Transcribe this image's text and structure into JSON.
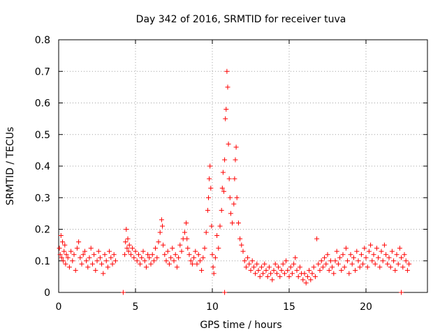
{
  "chart_data": {
    "type": "scatter",
    "title": "Day 342 of 2016, SRMTID for receiver tuva",
    "xlabel": "GPS time / hours",
    "ylabel": "SRMTID / TECUs",
    "xlim": [
      0,
      24
    ],
    "ylim": [
      0,
      0.8
    ],
    "xticks": [
      0,
      5,
      10,
      15,
      20
    ],
    "yticks": [
      0,
      0.1,
      0.2,
      0.3,
      0.4,
      0.5,
      0.6,
      0.7,
      0.8
    ],
    "xtick_labels": [
      "0",
      "5",
      "10",
      "15",
      "20"
    ],
    "ytick_labels": [
      "0",
      "0.1",
      "0.2",
      "0.3",
      "0.4",
      "0.5",
      "0.6",
      "0.7",
      "0.8"
    ],
    "grid": true,
    "marker": "+",
    "color": "#ff0000",
    "series": [
      {
        "name": "SRMTID",
        "points": [
          [
            0.05,
            0.14
          ],
          [
            0.1,
            0.12
          ],
          [
            0.15,
            0.18
          ],
          [
            0.2,
            0.11
          ],
          [
            0.25,
            0.16
          ],
          [
            0.3,
            0.1
          ],
          [
            0.35,
            0.13
          ],
          [
            0.4,
            0.15
          ],
          [
            0.45,
            0.09
          ],
          [
            0.5,
            0.12
          ],
          [
            0.6,
            0.11
          ],
          [
            0.7,
            0.08
          ],
          [
            0.8,
            0.13
          ],
          [
            0.9,
            0.1
          ],
          [
            1.0,
            0.12
          ],
          [
            1.1,
            0.07
          ],
          [
            1.2,
            0.14
          ],
          [
            1.3,
            0.16
          ],
          [
            1.4,
            0.11
          ],
          [
            1.5,
            0.09
          ],
          [
            1.6,
            0.12
          ],
          [
            1.7,
            0.13
          ],
          [
            1.8,
            0.1
          ],
          [
            1.9,
            0.08
          ],
          [
            2.0,
            0.11
          ],
          [
            2.1,
            0.14
          ],
          [
            2.2,
            0.09
          ],
          [
            2.3,
            0.12
          ],
          [
            2.4,
            0.07
          ],
          [
            2.5,
            0.1
          ],
          [
            2.6,
            0.13
          ],
          [
            2.7,
            0.11
          ],
          [
            2.8,
            0.09
          ],
          [
            2.9,
            0.06
          ],
          [
            3.0,
            0.12
          ],
          [
            3.1,
            0.1
          ],
          [
            3.2,
            0.08
          ],
          [
            3.3,
            0.13
          ],
          [
            3.4,
            0.11
          ],
          [
            3.5,
            0.09
          ],
          [
            3.6,
            0.12
          ],
          [
            3.7,
            0.1
          ],
          [
            4.2,
            0.0
          ],
          [
            4.3,
            0.12
          ],
          [
            4.35,
            0.16
          ],
          [
            4.4,
            0.2
          ],
          [
            4.45,
            0.14
          ],
          [
            4.5,
            0.17
          ],
          [
            4.55,
            0.13
          ],
          [
            4.6,
            0.15
          ],
          [
            4.7,
            0.12
          ],
          [
            4.8,
            0.14
          ],
          [
            4.9,
            0.11
          ],
          [
            5.0,
            0.13
          ],
          [
            5.1,
            0.1
          ],
          [
            5.2,
            0.12
          ],
          [
            5.3,
            0.09
          ],
          [
            5.4,
            0.11
          ],
          [
            5.5,
            0.13
          ],
          [
            5.6,
            0.1
          ],
          [
            5.7,
            0.08
          ],
          [
            5.8,
            0.12
          ],
          [
            5.9,
            0.11
          ],
          [
            6.0,
            0.09
          ],
          [
            6.1,
            0.12
          ],
          [
            6.2,
            0.1
          ],
          [
            6.3,
            0.14
          ],
          [
            6.4,
            0.11
          ],
          [
            6.5,
            0.16
          ],
          [
            6.6,
            0.19
          ],
          [
            6.7,
            0.23
          ],
          [
            6.75,
            0.21
          ],
          [
            6.8,
            0.15
          ],
          [
            6.9,
            0.12
          ],
          [
            7.0,
            0.1
          ],
          [
            7.1,
            0.13
          ],
          [
            7.2,
            0.09
          ],
          [
            7.3,
            0.11
          ],
          [
            7.4,
            0.14
          ],
          [
            7.5,
            0.1
          ],
          [
            7.6,
            0.12
          ],
          [
            7.7,
            0.08
          ],
          [
            7.8,
            0.11
          ],
          [
            7.9,
            0.15
          ],
          [
            8.0,
            0.13
          ],
          [
            8.1,
            0.17
          ],
          [
            8.2,
            0.19
          ],
          [
            8.3,
            0.22
          ],
          [
            8.35,
            0.17
          ],
          [
            8.4,
            0.14
          ],
          [
            8.5,
            0.12
          ],
          [
            8.6,
            0.1
          ],
          [
            8.7,
            0.09
          ],
          [
            8.8,
            0.11
          ],
          [
            8.9,
            0.13
          ],
          [
            9.0,
            0.09
          ],
          [
            9.1,
            0.12
          ],
          [
            9.2,
            0.1
          ],
          [
            9.3,
            0.07
          ],
          [
            9.4,
            0.11
          ],
          [
            9.5,
            0.14
          ],
          [
            9.6,
            0.19
          ],
          [
            9.7,
            0.26
          ],
          [
            9.75,
            0.3
          ],
          [
            9.8,
            0.36
          ],
          [
            9.85,
            0.4
          ],
          [
            9.9,
            0.33
          ],
          [
            9.95,
            0.21
          ],
          [
            10.0,
            0.12
          ],
          [
            10.05,
            0.08
          ],
          [
            10.1,
            0.06
          ],
          [
            10.2,
            0.11
          ],
          [
            10.3,
            0.18
          ],
          [
            10.4,
            0.14
          ],
          [
            10.5,
            0.21
          ],
          [
            10.6,
            0.26
          ],
          [
            10.65,
            0.33
          ],
          [
            10.7,
            0.38
          ],
          [
            10.75,
            0.32
          ],
          [
            10.8,
            0.42
          ],
          [
            10.85,
            0.55
          ],
          [
            10.9,
            0.58
          ],
          [
            10.95,
            0.7
          ],
          [
            11.0,
            0.65
          ],
          [
            11.05,
            0.47
          ],
          [
            11.1,
            0.36
          ],
          [
            11.15,
            0.3
          ],
          [
            11.2,
            0.25
          ],
          [
            11.3,
            0.22
          ],
          [
            11.4,
            0.28
          ],
          [
            11.45,
            0.36
          ],
          [
            11.5,
            0.42
          ],
          [
            11.55,
            0.46
          ],
          [
            11.6,
            0.3
          ],
          [
            11.7,
            0.22
          ],
          [
            11.8,
            0.17
          ],
          [
            11.9,
            0.15
          ],
          [
            12.0,
            0.13
          ],
          [
            10.8,
            0.0
          ],
          [
            12.1,
            0.1
          ],
          [
            12.2,
            0.08
          ],
          [
            12.3,
            0.11
          ],
          [
            12.4,
            0.09
          ],
          [
            12.5,
            0.07
          ],
          [
            12.6,
            0.1
          ],
          [
            12.7,
            0.08
          ],
          [
            12.8,
            0.06
          ],
          [
            12.9,
            0.09
          ],
          [
            13.0,
            0.07
          ],
          [
            13.1,
            0.05
          ],
          [
            13.2,
            0.08
          ],
          [
            13.3,
            0.06
          ],
          [
            13.4,
            0.09
          ],
          [
            13.5,
            0.07
          ],
          [
            13.6,
            0.05
          ],
          [
            13.7,
            0.08
          ],
          [
            13.8,
            0.06
          ],
          [
            13.9,
            0.04
          ],
          [
            14.0,
            0.07
          ],
          [
            14.1,
            0.09
          ],
          [
            14.2,
            0.06
          ],
          [
            14.3,
            0.08
          ],
          [
            14.4,
            0.05
          ],
          [
            14.5,
            0.07
          ],
          [
            14.6,
            0.09
          ],
          [
            14.7,
            0.06
          ],
          [
            14.8,
            0.1
          ],
          [
            14.9,
            0.07
          ],
          [
            15.0,
            0.05
          ],
          [
            15.1,
            0.08
          ],
          [
            15.2,
            0.06
          ],
          [
            15.3,
            0.09
          ],
          [
            15.4,
            0.11
          ],
          [
            15.5,
            0.07
          ],
          [
            15.6,
            0.05
          ],
          [
            15.7,
            0.08
          ],
          [
            15.8,
            0.06
          ],
          [
            15.9,
            0.04
          ],
          [
            16.0,
            0.06
          ],
          [
            16.1,
            0.03
          ],
          [
            16.2,
            0.05
          ],
          [
            16.3,
            0.07
          ],
          [
            16.4,
            0.04
          ],
          [
            16.5,
            0.06
          ],
          [
            16.6,
            0.08
          ],
          [
            16.7,
            0.05
          ],
          [
            16.8,
            0.17
          ],
          [
            16.9,
            0.09
          ],
          [
            17.0,
            0.07
          ],
          [
            17.1,
            0.1
          ],
          [
            17.2,
            0.08
          ],
          [
            17.3,
            0.11
          ],
          [
            17.4,
            0.09
          ],
          [
            17.5,
            0.12
          ],
          [
            17.6,
            0.07
          ],
          [
            17.7,
            0.1
          ],
          [
            17.8,
            0.08
          ],
          [
            17.9,
            0.06
          ],
          [
            18.0,
            0.1
          ],
          [
            18.1,
            0.13
          ],
          [
            18.2,
            0.09
          ],
          [
            18.3,
            0.11
          ],
          [
            18.4,
            0.07
          ],
          [
            18.5,
            0.12
          ],
          [
            18.6,
            0.08
          ],
          [
            18.7,
            0.14
          ],
          [
            18.8,
            0.1
          ],
          [
            18.9,
            0.06
          ],
          [
            19.0,
            0.12
          ],
          [
            19.1,
            0.09
          ],
          [
            19.2,
            0.11
          ],
          [
            19.3,
            0.07
          ],
          [
            19.4,
            0.13
          ],
          [
            19.5,
            0.1
          ],
          [
            19.6,
            0.08
          ],
          [
            19.7,
            0.12
          ],
          [
            19.8,
            0.09
          ],
          [
            19.9,
            0.14
          ],
          [
            20.0,
            0.11
          ],
          [
            20.1,
            0.08
          ],
          [
            20.2,
            0.13
          ],
          [
            20.3,
            0.15
          ],
          [
            20.4,
            0.1
          ],
          [
            20.5,
            0.12
          ],
          [
            20.6,
            0.09
          ],
          [
            20.7,
            0.14
          ],
          [
            20.8,
            0.11
          ],
          [
            20.9,
            0.08
          ],
          [
            21.0,
            0.13
          ],
          [
            21.1,
            0.1
          ],
          [
            21.2,
            0.15
          ],
          [
            21.3,
            0.12
          ],
          [
            21.4,
            0.09
          ],
          [
            21.5,
            0.11
          ],
          [
            21.6,
            0.08
          ],
          [
            21.7,
            0.13
          ],
          [
            21.8,
            0.1
          ],
          [
            21.9,
            0.07
          ],
          [
            22.0,
            0.12
          ],
          [
            22.1,
            0.09
          ],
          [
            22.2,
            0.14
          ],
          [
            22.3,
            0.11
          ],
          [
            22.4,
            0.08
          ],
          [
            22.5,
            0.12
          ],
          [
            22.6,
            0.1
          ],
          [
            22.7,
            0.07
          ],
          [
            22.8,
            0.09
          ],
          [
            22.3,
            0.0
          ]
        ]
      }
    ]
  }
}
